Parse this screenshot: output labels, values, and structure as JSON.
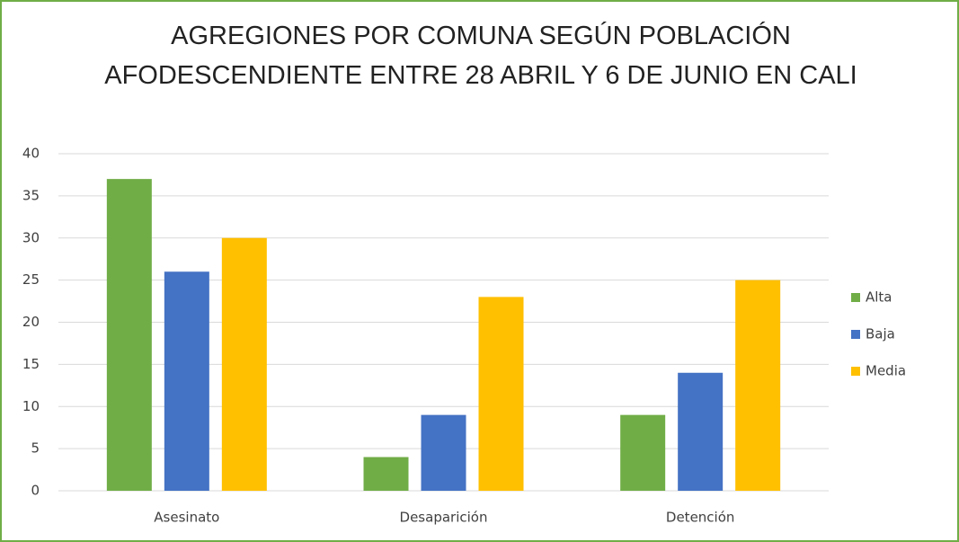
{
  "chart_data": {
    "type": "bar",
    "title": "AGREGIONES POR COMUNA SEGÚN POBLACIÓN AFODESCENDIENTE ENTRE 28 ABRIL Y 6 DE JUNIO EN CALI",
    "categories": [
      "Asesinato",
      "Desaparición",
      "Detención"
    ],
    "series": [
      {
        "name": "Alta",
        "color": "#70ad47",
        "values": [
          37,
          4,
          9
        ]
      },
      {
        "name": "Baja",
        "color": "#4472c4",
        "values": [
          26,
          9,
          14
        ]
      },
      {
        "name": "Media",
        "color": "#ffc000",
        "values": [
          30,
          23,
          25
        ]
      }
    ],
    "ylim": [
      0,
      40
    ],
    "yticks": [
      0,
      5,
      10,
      15,
      20,
      25,
      30,
      35,
      40
    ],
    "grid": true,
    "legend": "right"
  }
}
